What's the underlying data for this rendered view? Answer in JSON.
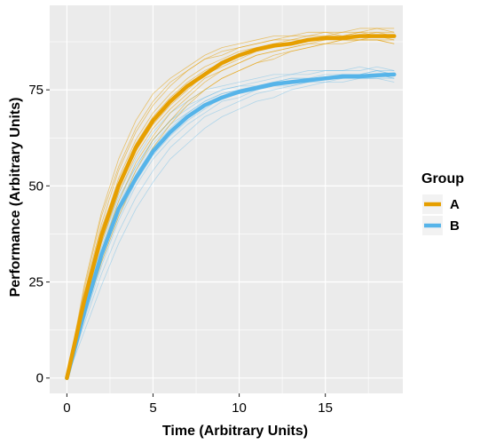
{
  "chart_data": {
    "type": "line",
    "xlabel": "Time (Arbitrary Units)",
    "ylabel": "Performance (Arbitrary Units)",
    "xlim": [
      -1,
      19.5
    ],
    "ylim": [
      -4,
      97
    ],
    "x_ticks": [
      0,
      5,
      10,
      15
    ],
    "x_tick_labels": [
      "0",
      "5",
      "10",
      "15"
    ],
    "y_ticks": [
      0,
      25,
      50,
      75
    ],
    "y_tick_labels": [
      "0",
      "25",
      "50",
      "75"
    ],
    "grid": true,
    "legend": {
      "title": "Group",
      "position": "right"
    },
    "colors": {
      "A": "#E69F00",
      "B": "#56B4E9",
      "panel": "#EBEBEB",
      "grid": "#FFFFFF"
    },
    "x": [
      0,
      1,
      2,
      3,
      4,
      5,
      6,
      7,
      8,
      9,
      10,
      11,
      12,
      13,
      14,
      15,
      16,
      17,
      18,
      19
    ],
    "series": [
      {
        "name": "A",
        "role": "mean",
        "values": [
          0,
          20,
          37,
          50,
          60,
          67,
          72,
          76,
          79,
          82,
          84,
          85.5,
          86.5,
          87,
          88,
          88.5,
          88.5,
          89,
          89,
          89
        ]
      },
      {
        "name": "B",
        "role": "mean",
        "values": [
          0,
          17,
          32,
          44,
          52,
          59,
          64,
          68,
          71,
          73,
          74.5,
          75.5,
          76.5,
          77,
          77.5,
          78,
          78.5,
          78.5,
          78.8,
          79
        ]
      }
    ],
    "individual_series": {
      "A": [
        [
          0,
          24,
          43,
          57,
          67,
          74,
          78,
          81,
          84,
          86,
          87,
          88,
          89,
          89,
          90,
          90,
          90,
          91,
          91,
          91
        ],
        [
          0,
          22,
          40,
          54,
          64,
          71,
          76,
          80,
          83,
          85,
          86,
          87,
          88,
          89,
          89,
          90,
          89,
          90,
          90,
          90
        ],
        [
          0,
          21,
          38,
          52,
          62,
          69,
          74,
          78,
          81,
          83,
          85,
          86,
          87,
          87,
          88,
          88,
          89,
          89,
          89,
          88
        ],
        [
          0,
          20,
          36,
          49,
          59,
          66,
          71,
          75,
          79,
          81,
          83,
          85,
          86,
          87,
          88,
          88,
          89,
          89,
          90,
          89
        ],
        [
          0,
          19,
          35,
          48,
          58,
          65,
          70,
          74,
          78,
          80,
          82,
          84,
          85,
          86,
          87,
          88,
          88,
          88,
          88,
          87
        ],
        [
          0,
          18,
          33,
          46,
          56,
          63,
          69,
          73,
          77,
          80,
          82,
          84,
          85,
          86,
          87,
          87,
          88,
          88,
          88,
          88
        ],
        [
          0,
          17,
          31,
          44,
          54,
          62,
          67,
          72,
          75,
          78,
          80,
          82,
          84,
          85,
          86,
          87,
          87,
          88,
          88,
          87
        ],
        [
          0,
          21,
          39,
          51,
          61,
          68,
          73,
          77,
          80,
          82,
          84,
          86,
          87,
          88,
          88,
          89,
          89,
          90,
          89,
          89
        ],
        [
          0,
          16,
          30,
          42,
          52,
          60,
          66,
          71,
          75,
          78,
          80,
          82,
          83,
          85,
          86,
          87,
          88,
          88,
          89,
          89
        ],
        [
          0,
          23,
          42,
          55,
          65,
          72,
          77,
          80,
          83,
          84,
          86,
          87,
          88,
          88,
          89,
          89,
          90,
          90,
          91,
          90
        ]
      ],
      "B": [
        [
          0,
          19,
          36,
          48,
          57,
          64,
          69,
          72,
          75,
          76,
          77,
          78,
          79,
          79,
          80,
          80,
          80,
          81,
          80,
          80
        ],
        [
          0,
          18,
          34,
          46,
          55,
          62,
          67,
          70,
          73,
          75,
          76,
          77,
          78,
          79,
          79,
          80,
          80,
          80,
          81,
          80
        ],
        [
          0,
          17,
          33,
          45,
          54,
          61,
          66,
          69,
          72,
          74,
          75,
          76,
          77,
          77,
          78,
          78,
          79,
          79,
          79,
          78
        ],
        [
          0,
          16,
          31,
          43,
          52,
          59,
          64,
          68,
          71,
          73,
          74,
          75,
          76,
          77,
          77,
          78,
          78,
          79,
          79,
          79
        ],
        [
          0,
          15,
          29,
          41,
          50,
          57,
          62,
          66,
          69,
          72,
          73,
          75,
          76,
          77,
          77,
          78,
          78,
          78,
          79,
          78
        ],
        [
          0,
          14,
          27,
          38,
          47,
          54,
          60,
          64,
          68,
          70,
          72,
          74,
          75,
          76,
          77,
          77,
          78,
          78,
          78,
          77
        ],
        [
          0,
          12,
          24,
          35,
          44,
          51,
          57,
          61,
          65,
          68,
          70,
          72,
          73,
          75,
          76,
          77,
          77,
          78,
          78,
          78
        ],
        [
          0,
          18,
          35,
          47,
          55,
          62,
          67,
          71,
          73,
          75,
          76,
          76,
          77,
          78,
          78,
          79,
          79,
          79,
          80,
          79
        ],
        [
          0,
          16,
          30,
          42,
          51,
          58,
          63,
          67,
          70,
          73,
          74,
          75,
          76,
          76,
          77,
          78,
          78,
          79,
          79,
          79
        ],
        [
          0,
          17,
          32,
          44,
          53,
          60,
          65,
          69,
          72,
          74,
          75,
          76,
          77,
          78,
          78,
          78,
          79,
          79,
          80,
          79
        ]
      ]
    }
  }
}
